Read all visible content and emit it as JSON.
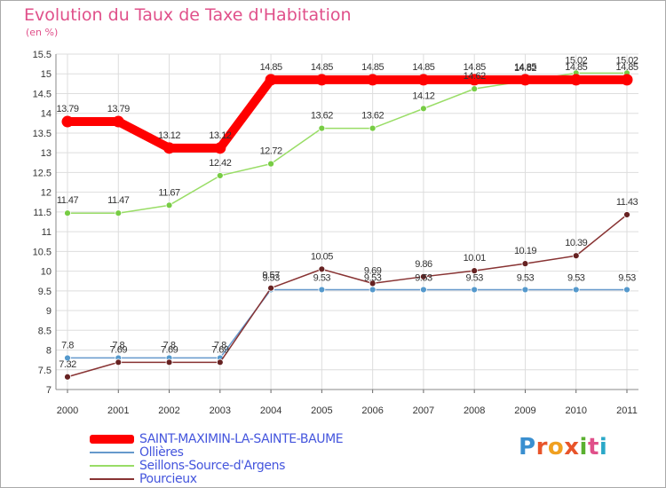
{
  "chart_data": {
    "type": "line",
    "title": "Evolution du Taux de Taxe d'Habitation",
    "subtitle": "(en %)",
    "x": [
      "2000",
      "2001",
      "2002",
      "2003",
      "2004",
      "2005",
      "2006",
      "2007",
      "2008",
      "2009",
      "2010",
      "2011"
    ],
    "ylim": [
      7,
      15.5
    ],
    "yticks": [
      "7",
      "7.5",
      "8",
      "8.5",
      "9",
      "9.5",
      "10",
      "10.5",
      "11",
      "11.5",
      "12",
      "12.5",
      "13",
      "13.5",
      "14",
      "14.5",
      "15",
      "15.5"
    ],
    "grid": true,
    "legend_position": "bottom-left",
    "series": [
      {
        "name": "SAINT-MAXIMIN-LA-SAINTE-BAUME",
        "color": "#ff0000",
        "values": [
          13.79,
          13.79,
          13.12,
          13.12,
          14.85,
          14.85,
          14.85,
          14.85,
          14.85,
          14.85,
          14.85,
          14.85
        ],
        "labels": [
          "13.79",
          "13.79",
          "13.12",
          "13.12",
          "14.85",
          "14.85",
          "14.85",
          "14.85",
          "14.85",
          "14.85",
          "14.85",
          "14.85"
        ]
      },
      {
        "name": "Ollières",
        "color": "#6699cc",
        "values": [
          7.8,
          7.8,
          7.8,
          7.8,
          9.53,
          9.53,
          9.53,
          9.53,
          9.53,
          9.53,
          9.53,
          9.53
        ],
        "labels": [
          "7.8",
          "7.8",
          "7.8",
          "7.8",
          "9.53",
          "9.53",
          "9.53",
          "9.53",
          "9.53",
          "9.53",
          "9.53",
          "9.53"
        ]
      },
      {
        "name": "Seillons-Source-d'Argens",
        "color": "#99dd66",
        "values": [
          11.47,
          11.47,
          11.67,
          12.42,
          12.72,
          13.62,
          13.62,
          14.12,
          14.62,
          14.82,
          15.02,
          15.02
        ],
        "labels": [
          "11.47",
          "11.47",
          "11.67",
          "12.42",
          "12.72",
          "13.62",
          "13.62",
          "14.12",
          "14.62",
          "14.82",
          "15.02",
          "15.02"
        ]
      },
      {
        "name": "Pourcieux",
        "color": "#883333",
        "values": [
          7.32,
          7.69,
          7.69,
          7.69,
          9.57,
          10.05,
          9.69,
          9.86,
          10.01,
          10.19,
          10.39,
          11.43
        ],
        "labels": [
          "7.32",
          "7.69",
          "7.69",
          "7.69",
          "9.57",
          "10.05",
          "9.69",
          "9.86",
          "10.01",
          "10.19",
          "10.39",
          "11.43"
        ]
      }
    ]
  },
  "logo": {
    "letters": [
      "P",
      "r",
      "o",
      "x",
      "i",
      "t",
      "i"
    ]
  }
}
